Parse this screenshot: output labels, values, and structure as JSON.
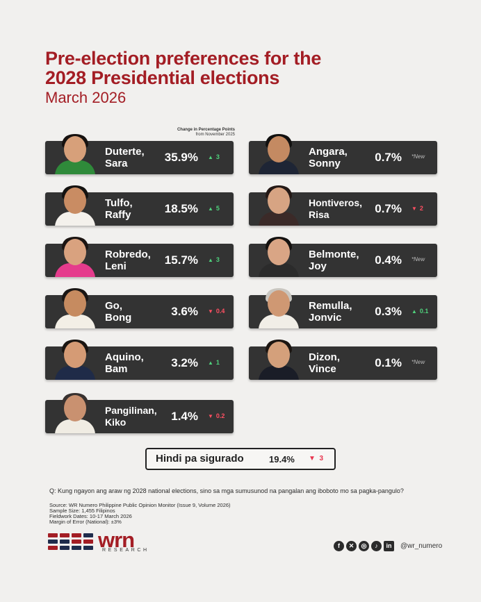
{
  "title_line1": "Pre-election preferences for the",
  "title_line2": "2028 Presidential elections",
  "subtitle": "March 2026",
  "change_note": {
    "line1": "Change in Percentage Points",
    "line2": "from November 2025"
  },
  "undecided": {
    "label": "Hindi pa sigurado",
    "value": "19.4%",
    "change": "3",
    "direction": "down"
  },
  "question": "Q:  Kung ngayon ang araw ng 2028 national elections, sino sa mga sumusunod na pangalan ang iboboto mo sa pagka-pangulo?",
  "source": [
    "Source: WR Numero Philippine Public Opinion Monitor (Issue 9, Volume 2026)",
    "Sample Size: 1,455 Filipinos",
    "Fieldwork Dates: 10-17 March 2026",
    "Margin of Error (National): ±3%"
  ],
  "logo": {
    "name": "wrn",
    "sub": "RESEARCH"
  },
  "social": {
    "icons": [
      "facebook-icon",
      "x-icon",
      "instagram-icon",
      "tiktok-icon",
      "linkedin-icon"
    ],
    "handle": "@wr_numero"
  },
  "colors": {
    "accent": "#a31d24",
    "card": "#333333",
    "up": "#4fd17c",
    "down": "#ff4f62"
  },
  "chart_data": {
    "type": "table",
    "title": "Pre-election preferences for the 2028 Presidential elections",
    "subtitle": "March 2026",
    "unit": "%",
    "change_unit": "Change in Percentage Points from November 2025",
    "candidates": [
      {
        "last": "Duterte,",
        "first": "Sara",
        "value": 35.9,
        "display": "35.9%",
        "change": "3",
        "direction": "up"
      },
      {
        "last": "Tulfo,",
        "first": "Raffy",
        "value": 18.5,
        "display": "18.5%",
        "change": "5",
        "direction": "up"
      },
      {
        "last": "Robredo,",
        "first": "Leni",
        "value": 15.7,
        "display": "15.7%",
        "change": "3",
        "direction": "up"
      },
      {
        "last": "Go,",
        "first": "Bong",
        "value": 3.6,
        "display": "3.6%",
        "change": "0.4",
        "direction": "down"
      },
      {
        "last": "Aquino,",
        "first": "Bam",
        "value": 3.2,
        "display": "3.2%",
        "change": "1",
        "direction": "up"
      },
      {
        "last": "Pangilinan,",
        "first": "Kiko",
        "value": 1.4,
        "display": "1.4%",
        "change": "0.2",
        "direction": "down"
      },
      {
        "last": "Angara,",
        "first": "Sonny",
        "value": 0.7,
        "display": "0.7%",
        "change": "*New",
        "direction": "new"
      },
      {
        "last": "Hontiveros,",
        "first": "Risa",
        "value": 0.7,
        "display": "0.7%",
        "change": "2",
        "direction": "down"
      },
      {
        "last": "Belmonte,",
        "first": "Joy",
        "value": 0.4,
        "display": "0.4%",
        "change": "*New",
        "direction": "new"
      },
      {
        "last": "Remulla,",
        "first": "Jonvic",
        "value": 0.3,
        "display": "0.3%",
        "change": "0.1",
        "direction": "up"
      },
      {
        "last": "Dizon,",
        "first": "Vince",
        "value": 0.1,
        "display": "0.1%",
        "change": "*New",
        "direction": "new"
      }
    ]
  }
}
